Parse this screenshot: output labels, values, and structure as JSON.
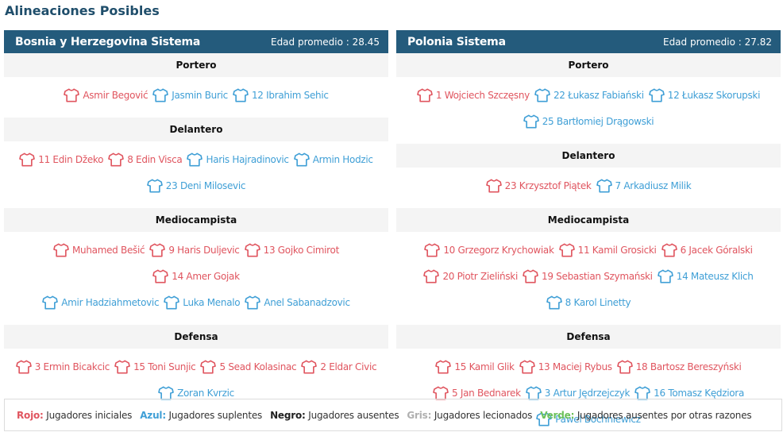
{
  "page_title": "Alineaciones Posibles",
  "teams": [
    {
      "name": "Bosnia y Herzegovina Sistema",
      "avg_age_label": "Edad promedio : 28.45",
      "positions": [
        {
          "title": "Portero",
          "rows": [
            [
              {
                "name": "Asmir Begović",
                "color": "red"
              },
              {
                "name": "Jasmin Buric",
                "color": "blue"
              },
              {
                "name": "12 Ibrahim Sehic",
                "color": "blue"
              }
            ]
          ]
        },
        {
          "title": "Delantero",
          "rows": [
            [
              {
                "name": "11 Edin Džeko",
                "color": "red"
              },
              {
                "name": "8 Edin Visca",
                "color": "red"
              },
              {
                "name": "Haris Hajradinovic",
                "color": "blue"
              },
              {
                "name": "Armin Hodzic",
                "color": "blue"
              }
            ],
            [
              {
                "name": "23 Deni Milosevic",
                "color": "blue"
              }
            ]
          ]
        },
        {
          "title": "Mediocampista",
          "rows": [
            [
              {
                "name": "Muhamed Bešić",
                "color": "red"
              },
              {
                "name": "9 Haris Duljevic",
                "color": "red"
              },
              {
                "name": "13 Gojko Cimirot",
                "color": "red"
              },
              {
                "name": "14 Amer Gojak",
                "color": "red"
              }
            ],
            [
              {
                "name": "Amir Hadziahmetovic",
                "color": "blue"
              },
              {
                "name": "Luka Menalo",
                "color": "blue"
              },
              {
                "name": "Anel Sabanadzovic",
                "color": "blue"
              }
            ]
          ]
        },
        {
          "title": "Defensa",
          "rows": [
            [
              {
                "name": "3 Ermin Bicakcic",
                "color": "red"
              },
              {
                "name": "15 Toni Sunjic",
                "color": "red"
              },
              {
                "name": "5 Sead Kolasinac",
                "color": "red"
              },
              {
                "name": "2 Eldar Civic",
                "color": "red"
              }
            ],
            [
              {
                "name": "Zoran Kvrzic",
                "color": "blue"
              }
            ]
          ]
        }
      ]
    },
    {
      "name": "Polonia Sistema",
      "avg_age_label": "Edad promedio : 27.82",
      "positions": [
        {
          "title": "Portero",
          "rows": [
            [
              {
                "name": "1 Wojciech Szczęsny",
                "color": "red"
              },
              {
                "name": "22 Łukasz Fabiański",
                "color": "blue"
              },
              {
                "name": "12 Łukasz Skorupski",
                "color": "blue"
              }
            ],
            [
              {
                "name": "25 Bartłomiej Drągowski",
                "color": "blue"
              }
            ]
          ]
        },
        {
          "title": "Delantero",
          "rows": [
            [
              {
                "name": "23 Krzysztof Piątek",
                "color": "red"
              },
              {
                "name": "7 Arkadiusz Milik",
                "color": "blue"
              }
            ]
          ]
        },
        {
          "title": "Mediocampista",
          "rows": [
            [
              {
                "name": "10 Grzegorz Krychowiak",
                "color": "red"
              },
              {
                "name": "11 Kamil Grosicki",
                "color": "red"
              },
              {
                "name": "6 Jacek Góralski",
                "color": "red"
              }
            ],
            [
              {
                "name": "20 Piotr Zieliński",
                "color": "red"
              },
              {
                "name": "19 Sebastian Szymański",
                "color": "red"
              },
              {
                "name": "14 Mateusz Klich",
                "color": "blue"
              }
            ],
            [
              {
                "name": "8 Karol Linetty",
                "color": "blue"
              }
            ]
          ]
        },
        {
          "title": "Defensa",
          "rows": [
            [
              {
                "name": "15 Kamil Glik",
                "color": "red"
              },
              {
                "name": "13 Maciej Rybus",
                "color": "red"
              },
              {
                "name": "18 Bartosz Bereszyński",
                "color": "red"
              }
            ],
            [
              {
                "name": "5 Jan Bednarek",
                "color": "red"
              },
              {
                "name": "3 Artur Jędrzejczyk",
                "color": "blue"
              },
              {
                "name": "16 Tomasz Kędziora",
                "color": "blue"
              }
            ],
            [
              {
                "name": "Pawel Bochniewicz",
                "color": "blue"
              }
            ]
          ]
        }
      ]
    }
  ],
  "legend": [
    {
      "key": "Rojo:",
      "text": "Jugadores iniciales",
      "color": "#e0555f"
    },
    {
      "key": "Azul:",
      "text": "Jugadores suplentes",
      "color": "#3f9fd6"
    },
    {
      "key": "Negro:",
      "text": "Jugadores ausentes",
      "color": "#222222"
    },
    {
      "key": "Gris:",
      "text": "Jugadores lecionados",
      "color": "#b0b0b0"
    },
    {
      "key": "Verde:",
      "text": "Jugadores ausentes por otras razones",
      "color": "#6cc15a"
    }
  ],
  "colors": {
    "red": "#e0555f",
    "blue": "#3f9fd6",
    "header": "#245b7c"
  }
}
